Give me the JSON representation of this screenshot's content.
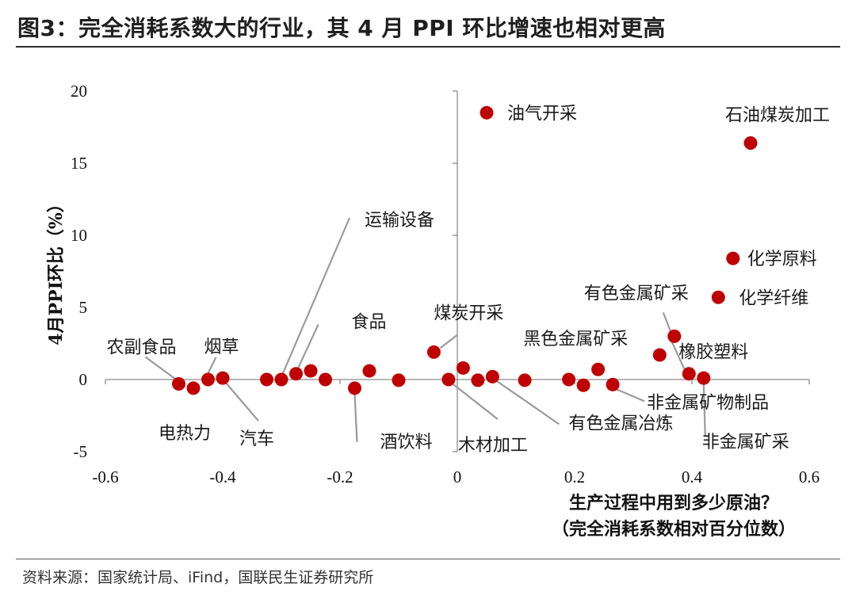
{
  "header": {
    "title": "图3：完全消耗系数大的行业，其 4 月 PPI 环比增速也相对更高"
  },
  "footer": {
    "source": "资料来源：国家统计局、iFind，国联民生证券研究所"
  },
  "chart_data": {
    "type": "scatter",
    "title": "",
    "xlabel_line1": "生产过程中用到多少原油？",
    "xlabel_line2": "（完全消耗系数相对百分位数）",
    "ylabel": "4月PPI环比（%）",
    "xlim": [
      -0.6,
      0.6
    ],
    "ylim": [
      -5,
      20
    ],
    "xticks": [
      "-0.6",
      "-0.4",
      "-0.2",
      "0",
      "0.2",
      "0.4",
      "0.6"
    ],
    "yticks": [
      "-5",
      "0",
      "5",
      "10",
      "15",
      "20"
    ],
    "grid": false,
    "marker_color": "#c00000",
    "points": [
      {
        "x": -0.475,
        "y": -0.3
      },
      {
        "x": -0.45,
        "y": -0.6
      },
      {
        "x": -0.425,
        "y": 0.0
      },
      {
        "x": -0.4,
        "y": 0.1
      },
      {
        "x": -0.325,
        "y": 0.0
      },
      {
        "x": -0.3,
        "y": 0.0
      },
      {
        "x": -0.275,
        "y": 0.4
      },
      {
        "x": -0.25,
        "y": 0.6
      },
      {
        "x": -0.225,
        "y": 0.0
      },
      {
        "x": -0.175,
        "y": -0.6
      },
      {
        "x": -0.15,
        "y": 0.6
      },
      {
        "x": -0.1,
        "y": -0.05
      },
      {
        "x": -0.04,
        "y": 1.9
      },
      {
        "x": -0.015,
        "y": 0.0
      },
      {
        "x": 0.01,
        "y": 0.8
      },
      {
        "x": 0.035,
        "y": -0.05
      },
      {
        "x": 0.06,
        "y": 0.2
      },
      {
        "x": 0.05,
        "y": 18.5
      },
      {
        "x": 0.115,
        "y": -0.05
      },
      {
        "x": 0.19,
        "y": 0.0
      },
      {
        "x": 0.215,
        "y": -0.4
      },
      {
        "x": 0.24,
        "y": 0.7
      },
      {
        "x": 0.265,
        "y": -0.35
      },
      {
        "x": 0.345,
        "y": 1.7
      },
      {
        "x": 0.37,
        "y": 3.0
      },
      {
        "x": 0.395,
        "y": 0.4
      },
      {
        "x": 0.42,
        "y": 0.1
      },
      {
        "x": 0.445,
        "y": 5.7
      },
      {
        "x": 0.47,
        "y": 8.4
      },
      {
        "x": 0.5,
        "y": 16.4
      }
    ],
    "annotations": [
      {
        "text": "油气开采",
        "x": 0.05,
        "y": 18.5
      },
      {
        "text": "石油煤炭加工",
        "x": 0.5,
        "y": 16.4
      },
      {
        "text": "化学原料",
        "x": 0.47,
        "y": 8.4
      },
      {
        "text": "化学纤维",
        "x": 0.445,
        "y": 5.7
      },
      {
        "text": "有色金属矿采",
        "x": 0.37,
        "y": 3.0
      },
      {
        "text": "黑色金属矿采",
        "x": 0.345,
        "y": 1.7
      },
      {
        "text": "橡胶塑料",
        "x": 0.395,
        "y": 0.4
      },
      {
        "text": "非金属矿物制品",
        "x": 0.265,
        "y": -0.35
      },
      {
        "text": "非金属矿采",
        "x": 0.42,
        "y": 0.1
      },
      {
        "text": "有色金属冶炼",
        "x": 0.06,
        "y": 0.2
      },
      {
        "text": "木材加工",
        "x": -0.015,
        "y": 0.0
      },
      {
        "text": "煤炭开采",
        "x": -0.04,
        "y": 1.9
      },
      {
        "text": "酒饮料",
        "x": -0.175,
        "y": -0.6
      },
      {
        "text": "食品",
        "x": -0.275,
        "y": 0.4
      },
      {
        "text": "运输设备",
        "x": -0.3,
        "y": 0.0
      },
      {
        "text": "汽车",
        "x": -0.4,
        "y": 0.1
      },
      {
        "text": "烟草",
        "x": -0.425,
        "y": 0.0
      },
      {
        "text": "农副食品",
        "x": -0.475,
        "y": -0.3
      },
      {
        "text": "电热力",
        "x": -0.45,
        "y": -0.6
      }
    ]
  }
}
